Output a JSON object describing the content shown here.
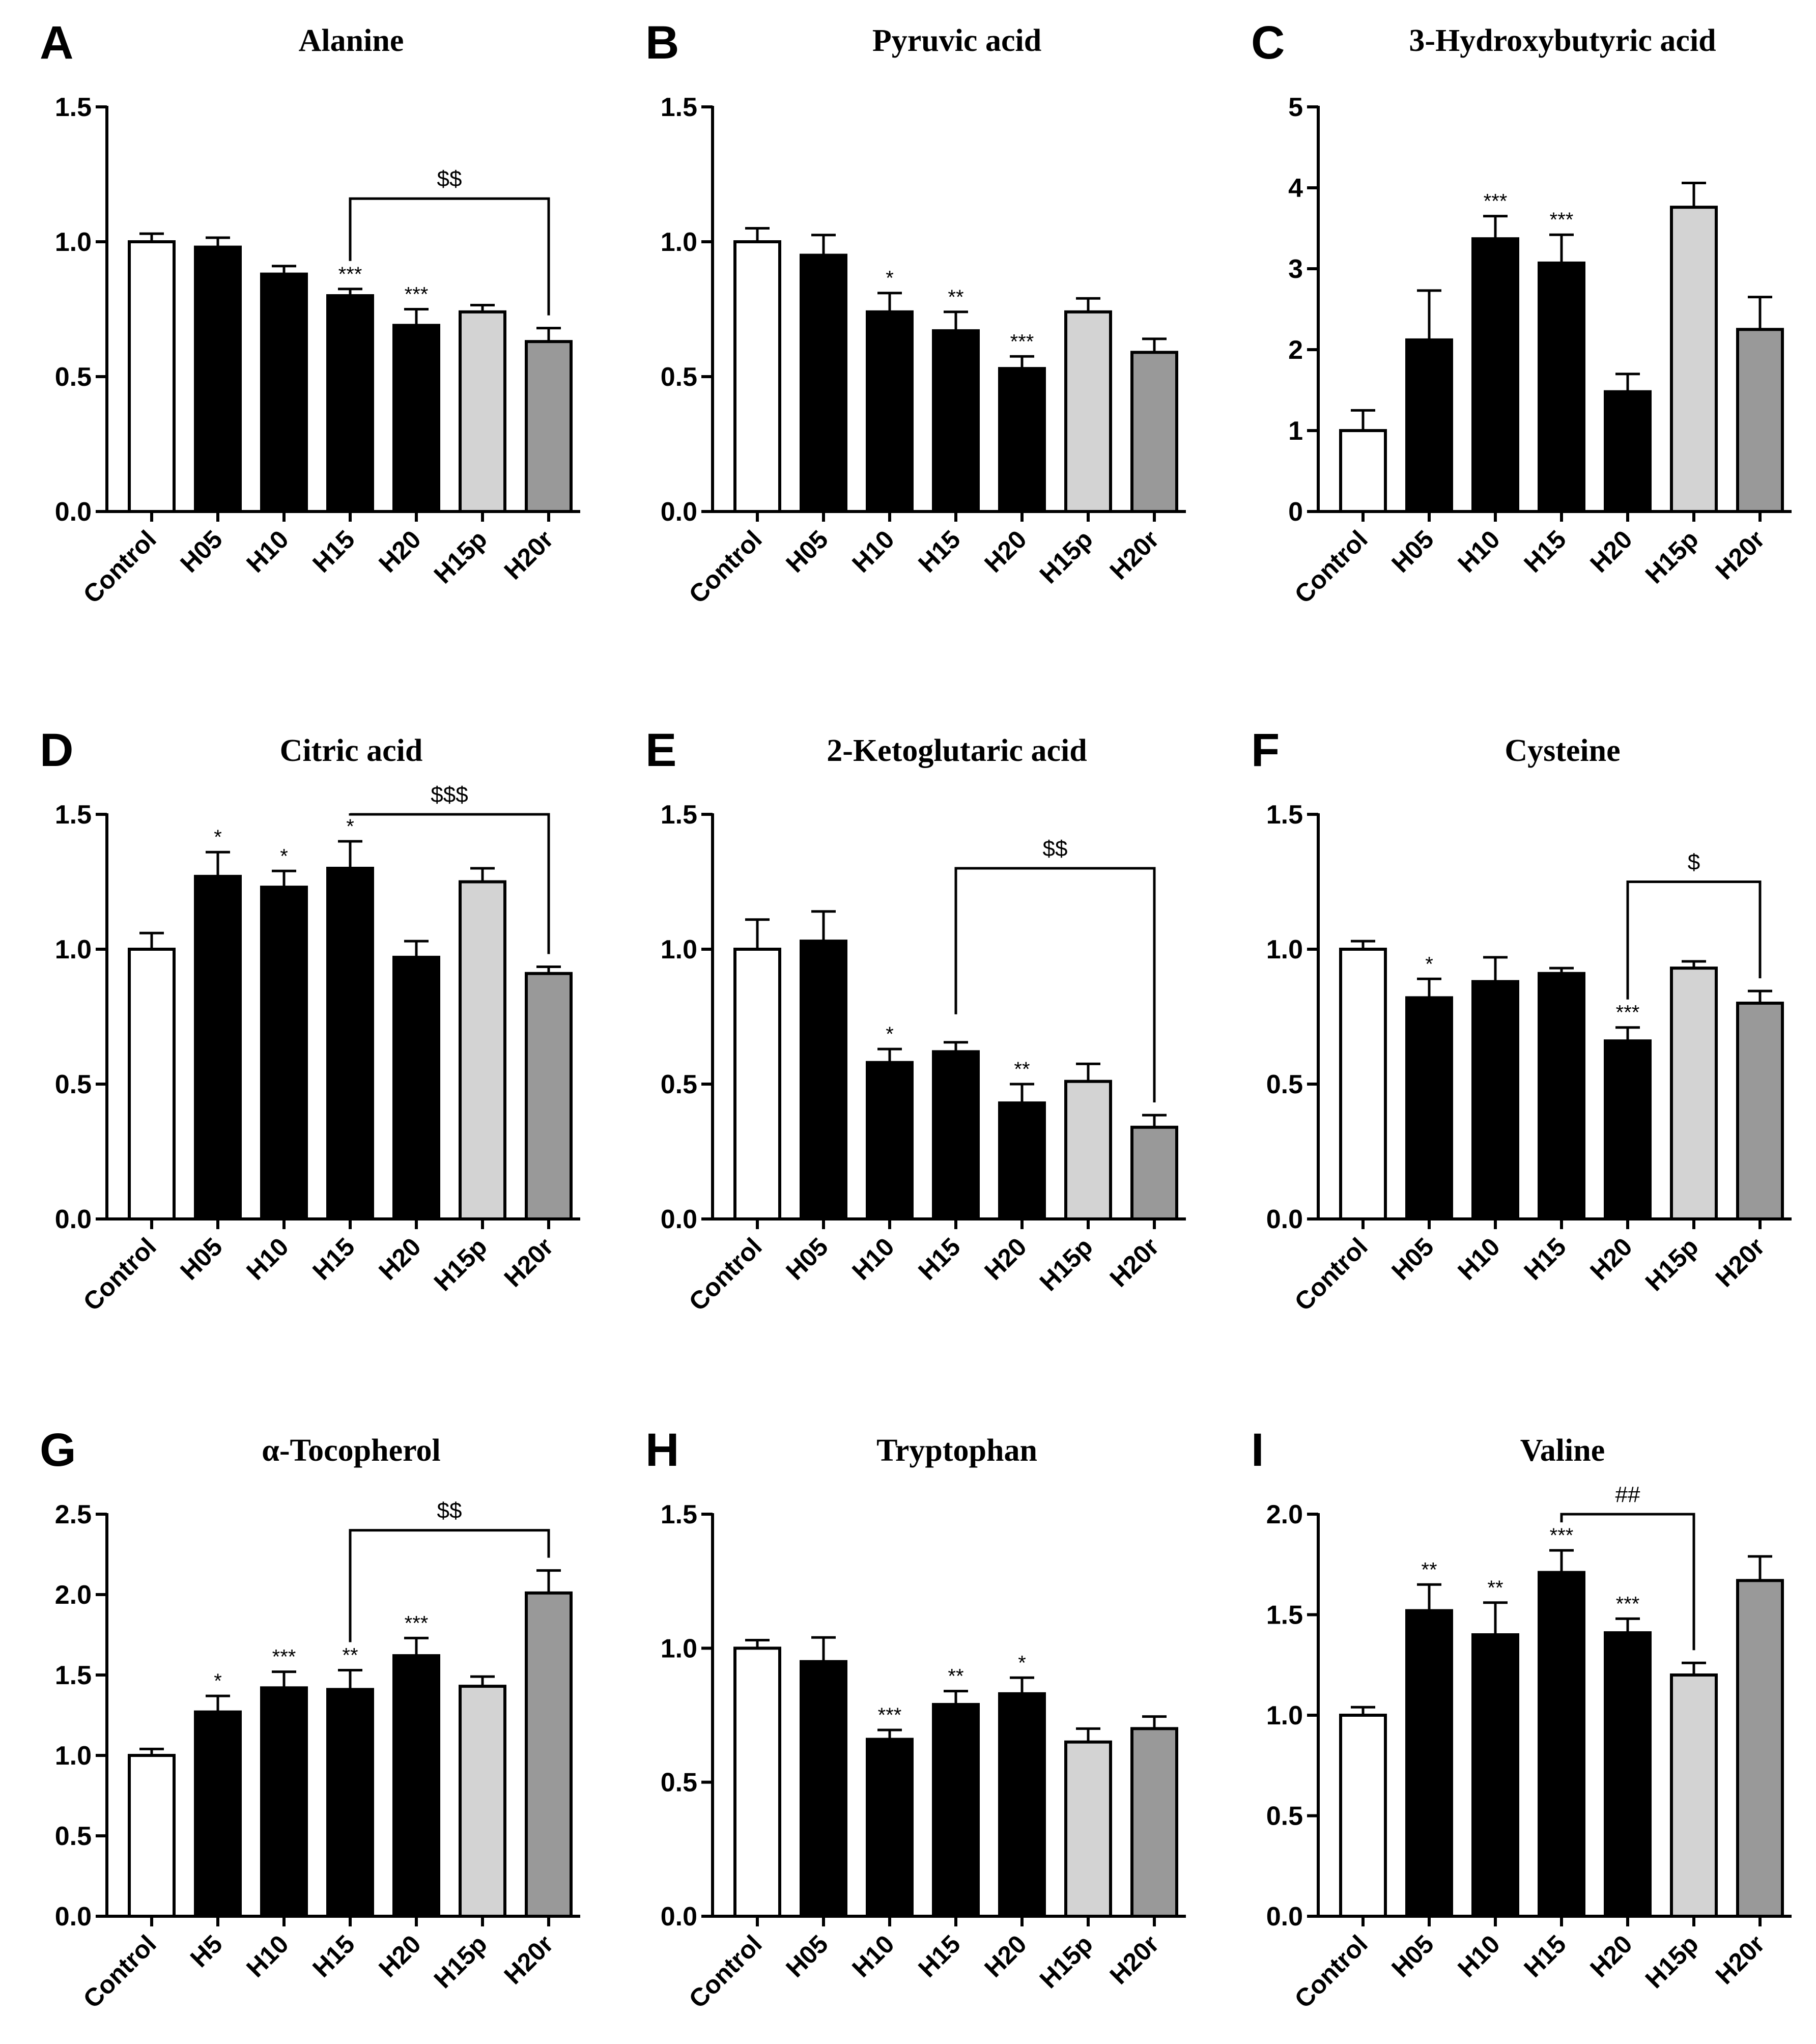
{
  "figure": {
    "description_role": "3x3 grid of bar charts, relative metabolite levels",
    "colors": {
      "Control": "#ffffff",
      "H": "#000000",
      "H15p": "#d3d3d3",
      "H20r": "#999999",
      "stroke": "#000000"
    }
  },
  "chart_data": [
    {
      "type": "bar",
      "panel": "A",
      "title": "Alanine",
      "categories": [
        "Control",
        "H05",
        "H10",
        "H15",
        "H20",
        "H15p",
        "H20r"
      ],
      "values": [
        1.0,
        0.98,
        0.88,
        0.8,
        0.69,
        0.74,
        0.63
      ],
      "errors": [
        0.03,
        0.035,
        0.03,
        0.025,
        0.06,
        0.025,
        0.05
      ],
      "ylim": [
        0,
        1.5
      ],
      "yticks": [
        "0.0",
        "0.5",
        "1.0",
        "1.5"
      ],
      "significance": [
        "",
        "",
        "",
        "***",
        "***",
        "",
        ""
      ],
      "comparison": {
        "from": "H15",
        "to": "H20r",
        "label": "$$",
        "level": 1.16
      }
    },
    {
      "type": "bar",
      "panel": "B",
      "title": "Pyruvic acid",
      "categories": [
        "Control",
        "H05",
        "H10",
        "H15",
        "H20",
        "H15p",
        "H20r"
      ],
      "values": [
        1.0,
        0.95,
        0.74,
        0.67,
        0.53,
        0.74,
        0.59
      ],
      "errors": [
        0.05,
        0.075,
        0.07,
        0.07,
        0.045,
        0.05,
        0.05
      ],
      "ylim": [
        0,
        1.5
      ],
      "yticks": [
        "0.0",
        "0.5",
        "1.0",
        "1.5"
      ],
      "significance": [
        "",
        "",
        "*",
        "**",
        "***",
        "",
        ""
      ],
      "comparison": null
    },
    {
      "type": "bar",
      "panel": "C",
      "title": "3-Hydroxybutyric acid",
      "categories": [
        "Control",
        "H05",
        "H10",
        "H15",
        "H20",
        "H15p",
        "H20r"
      ],
      "values": [
        1.0,
        2.12,
        3.37,
        3.07,
        1.48,
        3.76,
        2.25
      ],
      "errors": [
        0.25,
        0.61,
        0.28,
        0.35,
        0.22,
        0.3,
        0.4
      ],
      "ylim": [
        0,
        5
      ],
      "yticks": [
        "0",
        "1",
        "2",
        "3",
        "4",
        "5"
      ],
      "significance": [
        "",
        "",
        "***",
        "***",
        "",
        "",
        ""
      ],
      "comparison": null
    },
    {
      "type": "bar",
      "panel": "D",
      "title": "Citric acid",
      "categories": [
        "Control",
        "H05",
        "H10",
        "H15",
        "H20",
        "H15p",
        "H20r"
      ],
      "values": [
        1.0,
        1.27,
        1.23,
        1.3,
        0.97,
        1.25,
        0.91
      ],
      "errors": [
        0.06,
        0.09,
        0.06,
        0.1,
        0.06,
        0.05,
        0.025
      ],
      "ylim": [
        0,
        1.5
      ],
      "yticks": [
        "0.0",
        "0.5",
        "1.0",
        "1.5"
      ],
      "significance": [
        "",
        "*",
        "*",
        "*",
        "",
        "",
        ""
      ],
      "comparison": {
        "from": "H15",
        "to": "H20r",
        "label": "$$$",
        "level": 1.5
      }
    },
    {
      "type": "bar",
      "panel": "E",
      "title": "2-Ketoglutaric acid",
      "categories": [
        "Control",
        "H05",
        "H10",
        "H15",
        "H20",
        "H15p",
        "H20r"
      ],
      "values": [
        1.0,
        1.03,
        0.58,
        0.62,
        0.43,
        0.51,
        0.34
      ],
      "errors": [
        0.11,
        0.11,
        0.05,
        0.035,
        0.07,
        0.065,
        0.045
      ],
      "ylim": [
        0,
        1.5
      ],
      "yticks": [
        "0.0",
        "0.5",
        "1.0",
        "1.5"
      ],
      "significance": [
        "",
        "",
        "*",
        "",
        "**",
        "",
        ""
      ],
      "comparison": {
        "from": "H15",
        "to": "H20r",
        "label": "$$",
        "level": 1.3
      }
    },
    {
      "type": "bar",
      "panel": "F",
      "title": "Cysteine",
      "categories": [
        "Control",
        "H05",
        "H10",
        "H15",
        "H20",
        "H15p",
        "H20r"
      ],
      "values": [
        1.0,
        0.82,
        0.88,
        0.91,
        0.66,
        0.93,
        0.8
      ],
      "errors": [
        0.03,
        0.07,
        0.09,
        0.02,
        0.05,
        0.025,
        0.045
      ],
      "ylim": [
        0,
        1.5
      ],
      "yticks": [
        "0.0",
        "0.5",
        "1.0",
        "1.5"
      ],
      "significance": [
        "",
        "*",
        "",
        "",
        "***",
        "",
        ""
      ],
      "comparison": {
        "from": "H20",
        "to": "H20r",
        "label": "$",
        "level": 1.25
      }
    },
    {
      "type": "bar",
      "panel": "G",
      "title": "α-Tocopherol",
      "categories": [
        "Control",
        "H5",
        "H10",
        "H15",
        "H20",
        "H15p",
        "H20r"
      ],
      "values": [
        1.0,
        1.27,
        1.42,
        1.41,
        1.62,
        1.43,
        2.01
      ],
      "errors": [
        0.04,
        0.1,
        0.1,
        0.12,
        0.11,
        0.06,
        0.14
      ],
      "ylim": [
        0,
        2.5
      ],
      "yticks": [
        "0.0",
        "0.5",
        "1.0",
        "1.5",
        "2.0",
        "2.5"
      ],
      "significance": [
        "",
        "*",
        "***",
        "**",
        "***",
        "",
        ""
      ],
      "comparison": {
        "from": "H15",
        "to": "H20r",
        "label": "$$",
        "level": 2.4
      }
    },
    {
      "type": "bar",
      "panel": "H",
      "title": "Tryptophan",
      "categories": [
        "Control",
        "H05",
        "H10",
        "H15",
        "H20",
        "H15p",
        "H20r"
      ],
      "values": [
        1.0,
        0.95,
        0.66,
        0.79,
        0.83,
        0.65,
        0.7
      ],
      "errors": [
        0.03,
        0.09,
        0.035,
        0.05,
        0.06,
        0.05,
        0.045
      ],
      "ylim": [
        0,
        1.5
      ],
      "yticks": [
        "0.0",
        "0.5",
        "1.0",
        "1.5"
      ],
      "significance": [
        "",
        "",
        "***",
        "**",
        "*",
        "",
        ""
      ],
      "comparison": null
    },
    {
      "type": "bar",
      "panel": "I",
      "title": "Valine",
      "categories": [
        "Control",
        "H05",
        "H10",
        "H15",
        "H20",
        "H15p",
        "H20r"
      ],
      "values": [
        1.0,
        1.52,
        1.4,
        1.71,
        1.41,
        1.2,
        1.67
      ],
      "errors": [
        0.04,
        0.13,
        0.16,
        0.11,
        0.07,
        0.06,
        0.12
      ],
      "ylim": [
        0,
        2.0
      ],
      "yticks": [
        "0.0",
        "0.5",
        "1.0",
        "1.5",
        "2.0"
      ],
      "significance": [
        "",
        "**",
        "**",
        "***",
        "***",
        "",
        ""
      ],
      "comparison": {
        "from": "H15",
        "to": "H15p",
        "label": "##",
        "level": 2.0
      }
    }
  ]
}
